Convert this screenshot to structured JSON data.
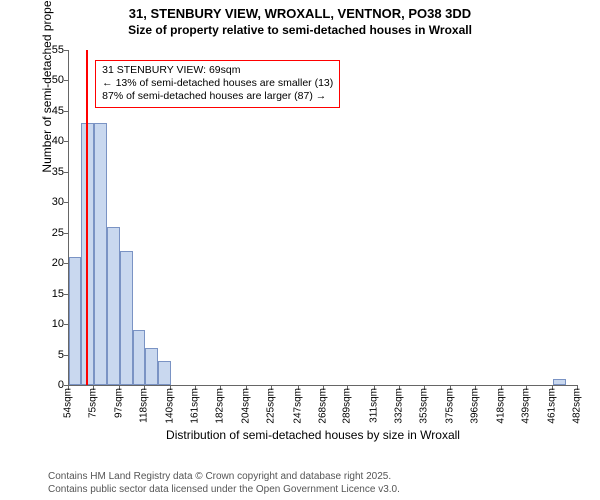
{
  "title_line1": "31, STENBURY VIEW, WROXALL, VENTNOR, PO38 3DD",
  "title_line2": "Size of property relative to semi-detached houses in Wroxall",
  "chart": {
    "type": "histogram",
    "ylim": [
      0,
      55
    ],
    "ytick_step": 5,
    "ylabel": "Number of semi-detached properties",
    "xlabel": "Distribution of semi-detached houses by size in Wroxall",
    "x_ticks_sqm": [
      54,
      75,
      97,
      118,
      140,
      161,
      182,
      204,
      225,
      247,
      268,
      289,
      311,
      332,
      353,
      375,
      396,
      418,
      439,
      461,
      482
    ],
    "x_suffix": "sqm",
    "x_min": 54,
    "x_max": 482,
    "bar_color": "#c9d8ef",
    "bar_border": "#7a93c4",
    "background_color": "#ffffff",
    "grid_color": "#666666",
    "bars": [
      {
        "x0_sqm": 54,
        "x1_sqm": 64.5,
        "count": 21
      },
      {
        "x0_sqm": 64.5,
        "x1_sqm": 75,
        "count": 43
      },
      {
        "x0_sqm": 75,
        "x1_sqm": 86,
        "count": 43
      },
      {
        "x0_sqm": 86,
        "x1_sqm": 97,
        "count": 26
      },
      {
        "x0_sqm": 97,
        "x1_sqm": 107.5,
        "count": 22
      },
      {
        "x0_sqm": 107.5,
        "x1_sqm": 118,
        "count": 9
      },
      {
        "x0_sqm": 118,
        "x1_sqm": 129,
        "count": 6
      },
      {
        "x0_sqm": 129,
        "x1_sqm": 140,
        "count": 4
      },
      {
        "x0_sqm": 461,
        "x1_sqm": 471.5,
        "count": 1
      }
    ],
    "marker_line": {
      "sqm": 69,
      "color": "#ff0000"
    },
    "annotation": {
      "line1": "31 STENBURY VIEW: 69sqm",
      "line2": "← 13% of semi-detached houses are smaller (13)",
      "line3": "87% of semi-detached houses are larger (87) →",
      "border_color": "#ff0000",
      "fontsize": 10.5,
      "left_sqm": 76,
      "top_count": 53.5
    }
  },
  "footer_line1": "Contains HM Land Registry data © Crown copyright and database right 2025.",
  "footer_line2": "Contains public sector data licensed under the Open Government Licence v3.0."
}
